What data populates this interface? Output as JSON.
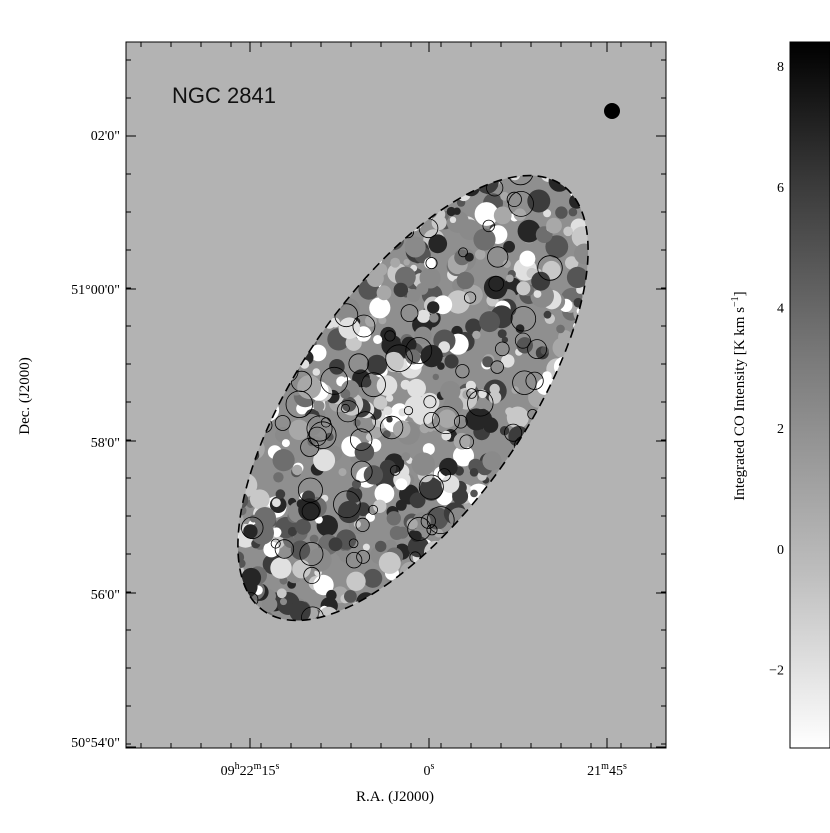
{
  "chart_data": {
    "type": "heatmap",
    "title": "",
    "annotation": "NGC 2841",
    "xlabel": "R.A. (J2000)",
    "ylabel": "Dec. (J2000)",
    "x_ticks": [
      {
        "label_main": "09",
        "sup1": "h",
        "mid": "22",
        "sup2": "m",
        "end": "15",
        "sup3": "s"
      },
      {
        "label_main": "0",
        "sup1": "s"
      },
      {
        "label_main": "21",
        "sup1": "m",
        "mid": "45",
        "sup2": "s"
      }
    ],
    "y_ticks": [
      "50°54'0\"",
      "56'0\"",
      "58'0\"",
      "51°00'0\"",
      "02'0\""
    ],
    "y_tick_values_arcmin": [
      -6,
      -4,
      -2,
      0,
      2
    ],
    "colorbar": {
      "label": "Integrated CO Intensity [K km s",
      "label_sup": "−1",
      "label_end": "]",
      "ticks": [
        "−2",
        "0",
        "2",
        "4",
        "6",
        "8"
      ],
      "tick_values": [
        -2,
        0,
        2,
        4,
        6,
        8
      ],
      "range": [
        -3.3,
        8.4
      ],
      "colormap": "gray_reversed"
    },
    "beam": "filled circle, top-right",
    "contours": "black solid contours on intensity",
    "aperture": "dashed ellipse"
  }
}
